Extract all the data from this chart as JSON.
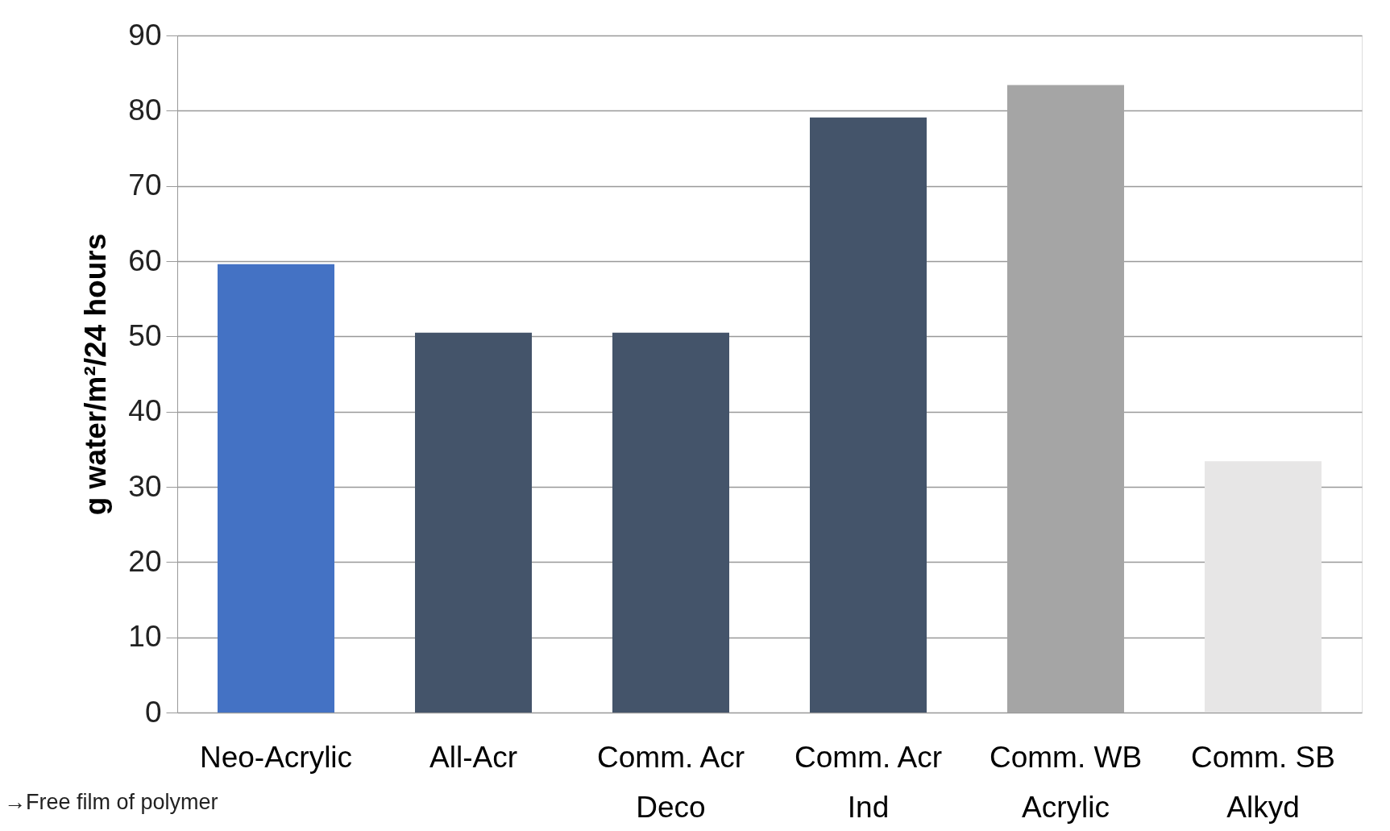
{
  "chart_data": {
    "type": "bar",
    "ylabel": "g water/m²/24 hours",
    "categories": [
      "Neo-Acrylic",
      "All-Acr",
      "Comm. Acr\nDeco",
      "Comm. Acr\nInd",
      "Comm. WB\nAcrylic",
      "Comm. SB\nAlkyd"
    ],
    "values": [
      59.6,
      50.5,
      50.5,
      79.1,
      83.4,
      33.4
    ],
    "colors": [
      "#4472c4",
      "#44546a",
      "#44546a",
      "#44546a",
      "#a5a5a5",
      "#e7e6e6"
    ],
    "ylim": [
      0,
      90
    ],
    "yticks": [
      0,
      10,
      20,
      30,
      40,
      50,
      60,
      70,
      80,
      90
    ],
    "grid": "y",
    "annotations": [
      "→Free film of polymer"
    ]
  }
}
